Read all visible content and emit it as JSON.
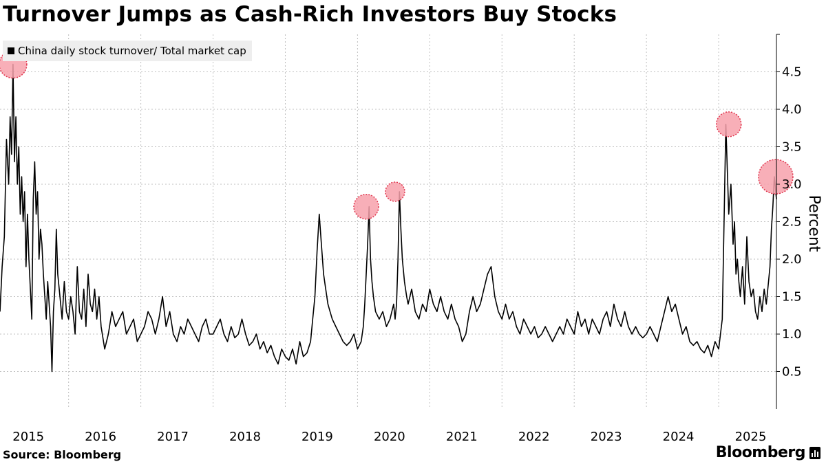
{
  "header": {
    "title": "Turnover Jumps as Cash-Rich Investors Buy Stocks"
  },
  "legend": {
    "label": "China daily stock turnover/ Total market cap"
  },
  "footer": {
    "source": "Source: Bloomberg",
    "brand": "Bloomberg"
  },
  "colors": {
    "line": "#000000",
    "highlight_fill": "#f7a1ab",
    "highlight_stroke": "#e0364e",
    "grid": "#bfbfbf",
    "legend_bg": "#eeeeee"
  },
  "chart_data": {
    "type": "line",
    "title": "Turnover Jumps as Cash-Rich Investors Buy Stocks",
    "xlabel": "",
    "ylabel": "Percent",
    "xlim": [
      2014.55,
      2025.3
    ],
    "ylim": [
      0.0,
      5.0
    ],
    "y_ticks": [
      0.5,
      1.0,
      1.5,
      2.0,
      2.5,
      3.0,
      3.5,
      4.0,
      4.5
    ],
    "y_tick_labels": [
      "0.5",
      "1.0",
      "1.5",
      "2.0",
      "2.5",
      "3.0",
      "3.5",
      "4.0",
      "4.5"
    ],
    "x_ticks": [
      2015,
      2016,
      2017,
      2018,
      2019,
      2020,
      2021,
      2022,
      2023,
      2024,
      2025
    ],
    "x_tick_labels": [
      "2015",
      "2016",
      "2017",
      "2018",
      "2019",
      "2020",
      "2021",
      "2022",
      "2023",
      "2024",
      "2025"
    ],
    "grid": true,
    "legend_position": "top-left",
    "series": [
      {
        "name": "China daily stock turnover/ Total market cap",
        "x": [
          2014.55,
          2014.58,
          2014.61,
          2014.64,
          2014.67,
          2014.69,
          2014.71,
          2014.73,
          2014.75,
          2014.77,
          2014.79,
          2014.81,
          2014.83,
          2014.85,
          2014.87,
          2014.89,
          2014.91,
          2014.93,
          2014.95,
          2014.97,
          2014.99,
          2015.01,
          2015.03,
          2015.05,
          2015.07,
          2015.09,
          2015.11,
          2015.13,
          2015.15,
          2015.17,
          2015.19,
          2015.21,
          2015.23,
          2015.25,
          2015.27,
          2015.29,
          2015.31,
          2015.33,
          2015.35,
          2015.38,
          2015.41,
          2015.44,
          2015.47,
          2015.5,
          2015.53,
          2015.56,
          2015.59,
          2015.62,
          2015.65,
          2015.68,
          2015.71,
          2015.74,
          2015.77,
          2015.8,
          2015.83,
          2015.86,
          2015.89,
          2015.92,
          2015.95,
          2016.0,
          2016.05,
          2016.1,
          2016.15,
          2016.2,
          2016.25,
          2016.3,
          2016.35,
          2016.4,
          2016.45,
          2016.5,
          2016.55,
          2016.6,
          2016.65,
          2016.7,
          2016.75,
          2016.8,
          2016.85,
          2016.9,
          2016.95,
          2017.0,
          2017.05,
          2017.1,
          2017.15,
          2017.2,
          2017.25,
          2017.3,
          2017.35,
          2017.4,
          2017.45,
          2017.5,
          2017.55,
          2017.6,
          2017.65,
          2017.7,
          2017.75,
          2017.8,
          2017.85,
          2017.9,
          2017.95,
          2018.0,
          2018.05,
          2018.1,
          2018.15,
          2018.2,
          2018.25,
          2018.3,
          2018.35,
          2018.4,
          2018.45,
          2018.5,
          2018.55,
          2018.6,
          2018.65,
          2018.7,
          2018.75,
          2018.8,
          2018.85,
          2018.88,
          2018.91,
          2018.94,
          2018.97,
          2019.0,
          2019.03,
          2019.06,
          2019.09,
          2019.12,
          2019.15,
          2019.2,
          2019.25,
          2019.3,
          2019.35,
          2019.4,
          2019.45,
          2019.5,
          2019.55,
          2019.58,
          2019.6,
          2019.62,
          2019.64,
          2019.66,
          2019.68,
          2019.7,
          2019.72,
          2019.75,
          2019.8,
          2019.85,
          2019.9,
          2019.95,
          2020.0,
          2020.02,
          2020.04,
          2020.06,
          2020.08,
          2020.1,
          2020.12,
          2020.15,
          2020.18,
          2020.2,
          2020.25,
          2020.3,
          2020.35,
          2020.4,
          2020.45,
          2020.5,
          2020.55,
          2020.6,
          2020.65,
          2020.7,
          2020.75,
          2020.8,
          2020.85,
          2020.9,
          2020.95,
          2021.0,
          2021.05,
          2021.1,
          2021.15,
          2021.2,
          2021.25,
          2021.3,
          2021.35,
          2021.4,
          2021.45,
          2021.5,
          2021.55,
          2021.6,
          2021.65,
          2021.7,
          2021.75,
          2021.8,
          2021.85,
          2021.9,
          2021.95,
          2022.0,
          2022.05,
          2022.1,
          2022.15,
          2022.2,
          2022.25,
          2022.3,
          2022.35,
          2022.4,
          2022.45,
          2022.5,
          2022.55,
          2022.6,
          2022.65,
          2022.7,
          2022.75,
          2022.8,
          2022.85,
          2022.9,
          2022.95,
          2023.0,
          2023.05,
          2023.1,
          2023.15,
          2023.2,
          2023.25,
          2023.3,
          2023.35,
          2023.4,
          2023.45,
          2023.5,
          2023.55,
          2023.6,
          2023.65,
          2023.7,
          2023.75,
          2023.8,
          2023.85,
          2023.9,
          2023.95,
          2024.0,
          2024.05,
          2024.1,
          2024.15,
          2024.2,
          2024.25,
          2024.3,
          2024.35,
          2024.4,
          2024.45,
          2024.5,
          2024.55,
          2024.6,
          2024.64,
          2024.67,
          2024.7,
          2024.72,
          2024.74,
          2024.76,
          2024.78,
          2024.8,
          2024.83,
          2024.86,
          2024.89,
          2024.92,
          2024.95,
          2024.98,
          2025.01,
          2025.04,
          2025.07,
          2025.1,
          2025.13,
          2025.16,
          2025.19,
          2025.21,
          2025.23,
          2025.25,
          2025.27,
          2025.29,
          2025.3
        ],
        "values": [
          1.3,
          1.9,
          2.3,
          3.6,
          3.0,
          3.9,
          3.4,
          4.6,
          3.3,
          3.9,
          3.0,
          3.5,
          2.6,
          3.1,
          2.5,
          2.9,
          1.9,
          2.6,
          2.0,
          1.6,
          1.2,
          2.8,
          3.3,
          2.6,
          2.9,
          2.0,
          2.4,
          2.2,
          1.8,
          1.5,
          1.2,
          1.7,
          1.4,
          1.1,
          0.5,
          1.3,
          1.6,
          2.4,
          1.8,
          1.5,
          1.2,
          1.7,
          1.3,
          1.2,
          1.5,
          1.3,
          1.0,
          1.9,
          1.3,
          1.2,
          1.6,
          1.1,
          1.8,
          1.4,
          1.3,
          1.6,
          1.2,
          1.5,
          1.1,
          0.8,
          1.0,
          1.3,
          1.1,
          1.2,
          1.3,
          1.0,
          1.1,
          1.2,
          0.9,
          1.0,
          1.1,
          1.3,
          1.2,
          1.0,
          1.2,
          1.5,
          1.1,
          1.3,
          1.0,
          0.9,
          1.1,
          1.0,
          1.2,
          1.1,
          1.0,
          0.9,
          1.1,
          1.2,
          1.0,
          1.0,
          1.1,
          1.2,
          1.0,
          0.9,
          1.1,
          0.95,
          1.0,
          1.2,
          1.0,
          0.85,
          0.9,
          1.0,
          0.8,
          0.9,
          0.75,
          0.85,
          0.7,
          0.6,
          0.8,
          0.7,
          0.65,
          0.8,
          0.6,
          0.9,
          0.7,
          0.75,
          0.9,
          1.2,
          1.5,
          2.1,
          2.6,
          2.2,
          1.8,
          1.6,
          1.4,
          1.3,
          1.2,
          1.1,
          1.0,
          0.9,
          0.85,
          0.9,
          1.0,
          0.8,
          0.9,
          1.1,
          1.4,
          1.8,
          2.2,
          2.7,
          2.0,
          1.7,
          1.5,
          1.3,
          1.2,
          1.3,
          1.1,
          1.2,
          1.4,
          1.2,
          1.4,
          2.0,
          2.9,
          2.4,
          2.0,
          1.7,
          1.5,
          1.4,
          1.6,
          1.3,
          1.2,
          1.4,
          1.3,
          1.6,
          1.4,
          1.3,
          1.5,
          1.3,
          1.2,
          1.4,
          1.2,
          1.1,
          0.9,
          1.0,
          1.3,
          1.5,
          1.3,
          1.4,
          1.6,
          1.8,
          1.9,
          1.5,
          1.3,
          1.2,
          1.4,
          1.2,
          1.3,
          1.1,
          1.0,
          1.2,
          1.1,
          1.0,
          1.1,
          0.95,
          1.0,
          1.1,
          1.0,
          0.9,
          1.0,
          1.1,
          1.0,
          1.2,
          1.1,
          1.0,
          1.3,
          1.1,
          1.2,
          1.0,
          1.2,
          1.1,
          1.0,
          1.2,
          1.3,
          1.1,
          1.4,
          1.2,
          1.1,
          1.3,
          1.1,
          1.0,
          1.1,
          1.0,
          0.95,
          1.0,
          1.1,
          1.0,
          0.9,
          1.1,
          1.3,
          1.5,
          1.3,
          1.4,
          1.2,
          1.0,
          1.1,
          0.9,
          0.85,
          0.9,
          0.8,
          0.75,
          0.85,
          0.7,
          0.9,
          0.8,
          1.2,
          3.8,
          2.6,
          3.0,
          2.2,
          2.5,
          1.8,
          2.0,
          1.7,
          1.5,
          1.9,
          1.4,
          2.3,
          1.7,
          1.5,
          1.6,
          1.3,
          1.2,
          1.5,
          1.3,
          1.6,
          1.4,
          1.7,
          1.9,
          2.4,
          2.7,
          3.1,
          2.9,
          2.8
        ]
      }
    ],
    "highlights": [
      {
        "x": 2014.73,
        "y": 4.6,
        "size": "medium"
      },
      {
        "x": 2019.62,
        "y": 2.7,
        "size": "small"
      },
      {
        "x": 2020.02,
        "y": 2.9,
        "size": "x-small"
      },
      {
        "x": 2024.64,
        "y": 3.8,
        "size": "small"
      },
      {
        "x": 2025.29,
        "y": 3.1,
        "size": "large"
      }
    ]
  }
}
